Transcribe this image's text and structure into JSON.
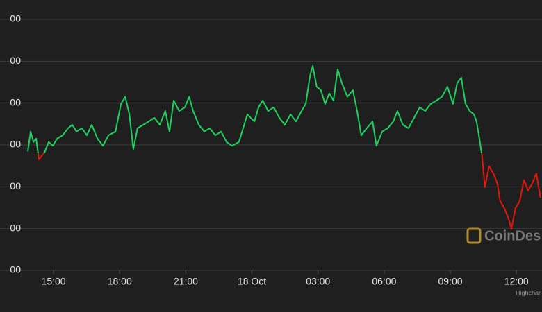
{
  "chart_data": {
    "type": "line",
    "watermark": "CoinDes",
    "credit": "Highchar",
    "xlim": [
      12.57,
      37.16
    ],
    "xticks": [
      {
        "value": 15,
        "label": "15:00"
      },
      {
        "value": 18,
        "label": "18:00"
      },
      {
        "value": 21,
        "label": "21:00"
      },
      {
        "value": 24,
        "label": "18 Oct"
      },
      {
        "value": 27,
        "label": "03:00"
      },
      {
        "value": 30,
        "label": "06:00"
      },
      {
        "value": 33,
        "label": "09:00"
      },
      {
        "value": 36,
        "label": "12:00"
      }
    ],
    "ylim": [
      19300,
      19900
    ],
    "yticks": [
      {
        "value": 19300,
        "label": "00"
      },
      {
        "value": 19400,
        "label": "00"
      },
      {
        "value": 19500,
        "label": "00"
      },
      {
        "value": 19600,
        "label": "00"
      },
      {
        "value": 19700,
        "label": "00"
      },
      {
        "value": 19800,
        "label": "00"
      },
      {
        "value": 19900,
        "label": "00"
      }
    ],
    "grid": true,
    "threshold": 19580,
    "color_above": "#1fd15f",
    "color_below": "#e3170a",
    "x": [
      13.83,
      13.96,
      14.09,
      14.21,
      14.34,
      14.46,
      14.59,
      14.78,
      14.97,
      15.16,
      15.41,
      15.66,
      15.85,
      16.04,
      16.29,
      16.51,
      16.73,
      16.99,
      17.24,
      17.49,
      17.81,
      18.06,
      18.25,
      18.44,
      18.62,
      18.81,
      19.07,
      19.32,
      19.57,
      19.82,
      20.07,
      20.26,
      20.45,
      20.7,
      20.96,
      21.15,
      21.33,
      21.59,
      21.84,
      22.09,
      22.34,
      22.6,
      22.85,
      23.1,
      23.41,
      23.6,
      23.79,
      24.11,
      24.3,
      24.49,
      24.74,
      24.99,
      25.24,
      25.49,
      25.75,
      26.0,
      26.25,
      26.44,
      26.63,
      26.76,
      26.94,
      27.13,
      27.32,
      27.51,
      27.7,
      27.89,
      28.08,
      28.33,
      28.58,
      28.77,
      28.96,
      29.21,
      29.47,
      29.65,
      29.91,
      30.16,
      30.41,
      30.6,
      30.85,
      31.1,
      31.36,
      31.61,
      31.86,
      32.11,
      32.37,
      32.62,
      32.87,
      33.12,
      33.31,
      33.5,
      33.69,
      33.88,
      34.07,
      34.19,
      34.32,
      34.44,
      34.57,
      34.76,
      34.95,
      35.14,
      35.26,
      35.45,
      35.64,
      35.77,
      35.96,
      36.15,
      36.34,
      36.53,
      36.71,
      36.9,
      37.09
    ],
    "values": [
      19585,
      19632,
      19607,
      19615,
      19565,
      19574,
      19582,
      19607,
      19598,
      19615,
      19623,
      19640,
      19648,
      19632,
      19640,
      19623,
      19648,
      19615,
      19598,
      19623,
      19632,
      19698,
      19715,
      19673,
      19590,
      19640,
      19648,
      19656,
      19665,
      19648,
      19681,
      19632,
      19706,
      19681,
      19690,
      19715,
      19681,
      19648,
      19632,
      19640,
      19623,
      19632,
      19607,
      19598,
      19607,
      19640,
      19673,
      19656,
      19690,
      19706,
      19681,
      19690,
      19665,
      19648,
      19673,
      19656,
      19681,
      19698,
      19764,
      19789,
      19739,
      19731,
      19698,
      19723,
      19706,
      19781,
      19748,
      19715,
      19731,
      19681,
      19623,
      19640,
      19656,
      19598,
      19632,
      19640,
      19656,
      19681,
      19648,
      19640,
      19665,
      19690,
      19681,
      19698,
      19706,
      19715,
      19739,
      19698,
      19748,
      19761,
      19698,
      19681,
      19673,
      19656,
      19615,
      19574,
      19499,
      19549,
      19532,
      19507,
      19466,
      19449,
      19424,
      19399,
      19449,
      19466,
      19516,
      19491,
      19507,
      19532,
      19474
    ]
  }
}
